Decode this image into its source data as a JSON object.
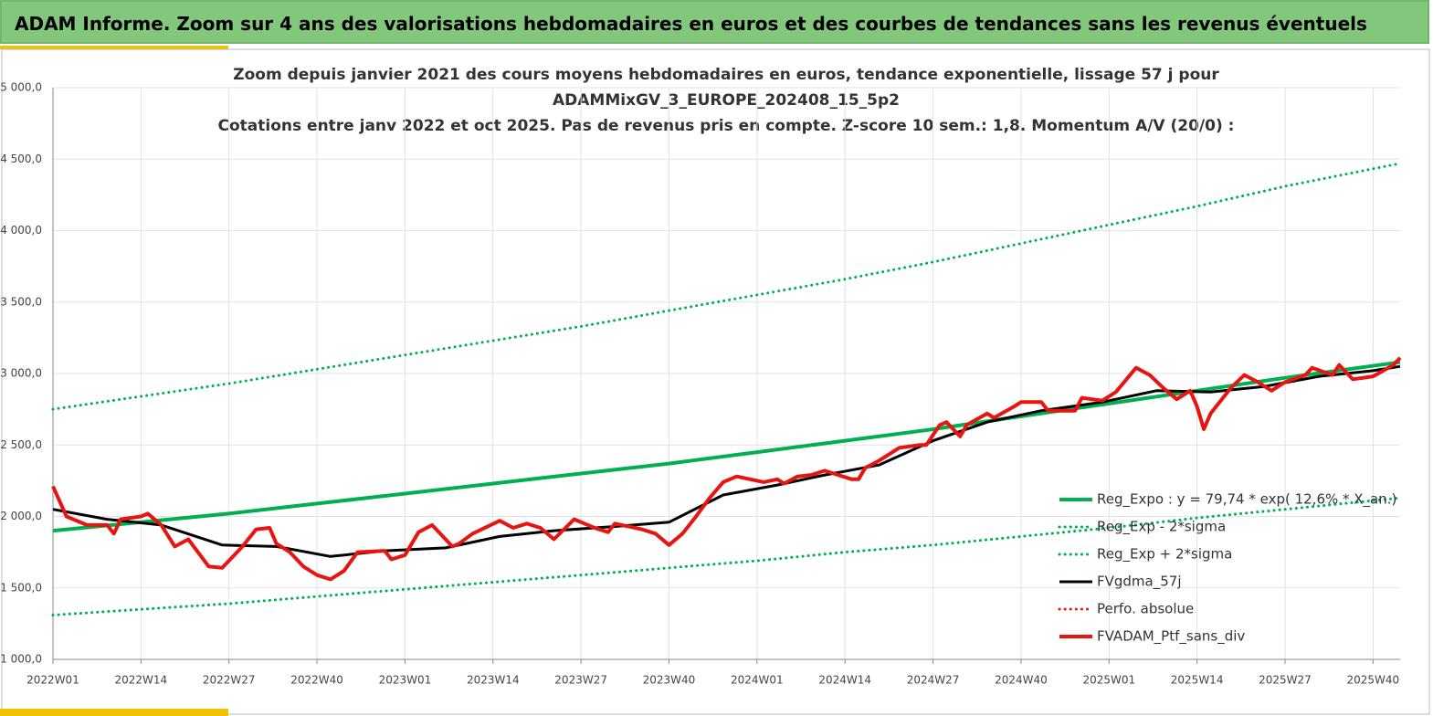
{
  "header": {
    "title": "ADAM Informe. Zoom sur 4 ans des valorisations hebdomadaires en euros et des courbes de tendances sans les revenus éventuels"
  },
  "chart_data": {
    "type": "line",
    "title_lines": [
      "Zoom depuis janvier 2021 des cours moyens hebdomadaires  en euros, tendance exponentielle, lissage 57 j pour",
      "ADAMMixGV_3_EUROPE_202408_15_5p2",
      "Cotations  entre janv 2022 et oct 2025. Pas de revenus pris en compte. Z-score 10 sem.: 1,8. Momentum A/V (20/0) :"
    ],
    "xlim": [
      0,
      199
    ],
    "xticks": [
      {
        "value": 0,
        "label": "2022W01"
      },
      {
        "value": 13,
        "label": "2022W14"
      },
      {
        "value": 26,
        "label": "2022W27"
      },
      {
        "value": 39,
        "label": "2022W40"
      },
      {
        "value": 52,
        "label": "2023W01"
      },
      {
        "value": 65,
        "label": "2023W14"
      },
      {
        "value": 78,
        "label": "2023W27"
      },
      {
        "value": 91,
        "label": "2023W40"
      },
      {
        "value": 104,
        "label": "2024W01"
      },
      {
        "value": 117,
        "label": "2024W14"
      },
      {
        "value": 130,
        "label": "2024W27"
      },
      {
        "value": 143,
        "label": "2024W40"
      },
      {
        "value": 156,
        "label": "2025W01"
      },
      {
        "value": 169,
        "label": "2025W14"
      },
      {
        "value": 182,
        "label": "2025W27"
      },
      {
        "value": 195,
        "label": "2025W40"
      }
    ],
    "ylim": [
      1000,
      5000
    ],
    "yticks": [
      {
        "value": 1000,
        "label": "1 000,0"
      },
      {
        "value": 1500,
        "label": "1 500,0"
      },
      {
        "value": 2000,
        "label": "2 000,0"
      },
      {
        "value": 2500,
        "label": "2 500,0"
      },
      {
        "value": 3000,
        "label": "3 000,0"
      },
      {
        "value": 3500,
        "label": "3 500,0"
      },
      {
        "value": 4000,
        "label": "4 000,0"
      },
      {
        "value": 4500,
        "label": "4 500,0"
      },
      {
        "value": 5000,
        "label": "5 000,0"
      }
    ],
    "grid": true,
    "series": [
      {
        "name": "Reg_Expo : y = 79,74 * exp( 12,6% *  X_an.)",
        "color": "#00b050",
        "dash": "solid",
        "width": 4,
        "x": [
          0,
          13,
          26,
          39,
          52,
          65,
          78,
          91,
          104,
          117,
          130,
          143,
          156,
          169,
          182,
          199
        ],
        "values": [
          1900,
          1960,
          2020,
          2090,
          2160,
          2230,
          2300,
          2370,
          2450,
          2530,
          2610,
          2700,
          2790,
          2880,
          2970,
          3080
        ]
      },
      {
        "name": "Reg_Exp - 2*sigma",
        "color": "#00b050",
        "dash": "dotted",
        "width": 3,
        "x": [
          0,
          13,
          26,
          39,
          52,
          65,
          78,
          91,
          104,
          117,
          130,
          143,
          156,
          169,
          182,
          199
        ],
        "values": [
          1310,
          1350,
          1390,
          1440,
          1490,
          1540,
          1590,
          1640,
          1690,
          1750,
          1800,
          1860,
          1920,
          1990,
          2050,
          2130
        ]
      },
      {
        "name": "Reg_Exp + 2*sigma",
        "color": "#00b050",
        "dash": "dotted",
        "width": 3,
        "x": [
          0,
          13,
          26,
          39,
          52,
          65,
          78,
          91,
          104,
          117,
          130,
          143,
          156,
          169,
          182,
          199
        ],
        "values": [
          2750,
          2840,
          2930,
          3030,
          3130,
          3230,
          3330,
          3440,
          3550,
          3660,
          3780,
          3910,
          4040,
          4170,
          4310,
          4470
        ]
      },
      {
        "name": "FVgdma_57j",
        "color": "#000000",
        "dash": "solid",
        "width": 3,
        "x": [
          0,
          8,
          16,
          25,
          33,
          41,
          49,
          58,
          66,
          74,
          83,
          91,
          99,
          107,
          114,
          122,
          130,
          138,
          146,
          155,
          163,
          171,
          179,
          187,
          195,
          199
        ],
        "values": [
          2050,
          1980,
          1940,
          1800,
          1790,
          1720,
          1760,
          1780,
          1860,
          1900,
          1930,
          1960,
          2150,
          2220,
          2290,
          2360,
          2530,
          2660,
          2740,
          2800,
          2880,
          2870,
          2910,
          2980,
          3020,
          3050
        ]
      },
      {
        "name": "Perfo. absolue",
        "color": "#e31a1c",
        "dash": "dotted",
        "width": 3,
        "x": [],
        "values": []
      },
      {
        "name": "FVADAM_Ptf_sans_div",
        "color": "#e8140f",
        "dash": "solid",
        "width": 4,
        "x": [
          0,
          2,
          5,
          8,
          9,
          10,
          13,
          14,
          16,
          18,
          20,
          23,
          25,
          28,
          30,
          32,
          33,
          35,
          37,
          39,
          41,
          43,
          45,
          49,
          50,
          52,
          54,
          56,
          59,
          60,
          62,
          66,
          68,
          70,
          72,
          74,
          77,
          80,
          82,
          83,
          87,
          89,
          91,
          93,
          95,
          97,
          99,
          101,
          105,
          107,
          108,
          110,
          112,
          114,
          118,
          119,
          120,
          122,
          125,
          128,
          129,
          131,
          132,
          134,
          135,
          138,
          139,
          142,
          143,
          146,
          147,
          151,
          152,
          155,
          157,
          160,
          162,
          164,
          166,
          168,
          169,
          170,
          171,
          174,
          176,
          178,
          180,
          182,
          185,
          186,
          189,
          190,
          192,
          195,
          198,
          199
        ],
        "values": [
          2210,
          2000,
          1940,
          1940,
          1880,
          1980,
          2000,
          2020,
          1940,
          1790,
          1840,
          1650,
          1640,
          1790,
          1910,
          1920,
          1810,
          1750,
          1650,
          1590,
          1560,
          1620,
          1750,
          1760,
          1700,
          1730,
          1890,
          1940,
          1790,
          1810,
          1880,
          1970,
          1920,
          1950,
          1920,
          1840,
          1980,
          1920,
          1890,
          1950,
          1910,
          1880,
          1800,
          1880,
          2000,
          2130,
          2240,
          2280,
          2240,
          2260,
          2230,
          2280,
          2290,
          2320,
          2260,
          2260,
          2340,
          2390,
          2480,
          2500,
          2500,
          2640,
          2660,
          2560,
          2640,
          2720,
          2690,
          2770,
          2800,
          2800,
          2740,
          2740,
          2830,
          2810,
          2870,
          3040,
          2990,
          2900,
          2820,
          2880,
          2770,
          2610,
          2720,
          2900,
          2990,
          2940,
          2880,
          2940,
          2990,
          3040,
          2990,
          3060,
          2960,
          2980,
          3060,
          3110
        ]
      }
    ]
  }
}
